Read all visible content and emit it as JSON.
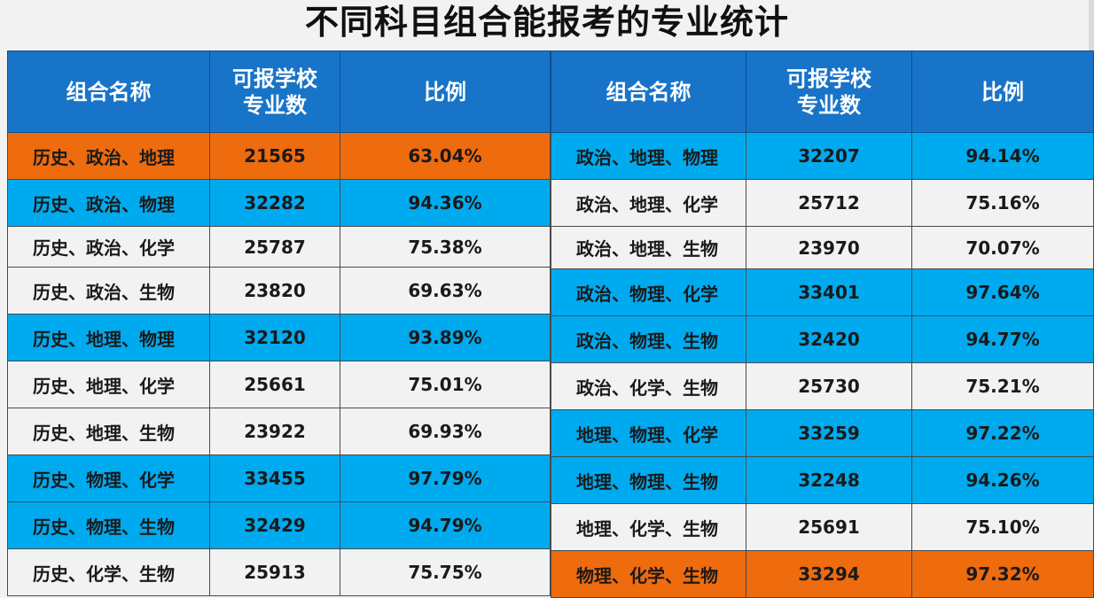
{
  "title": "不同科目组合能报考的专业统计",
  "headers": {
    "name": "组合名称",
    "count_line1": "可报学校",
    "count_line2": "专业数",
    "ratio": "比例"
  },
  "colors": {
    "header": "#1874c8",
    "blue_row": "#00aaee",
    "white_row": "#f2f2f2",
    "orange_row": "#ee6b0e"
  },
  "left_rows": [
    {
      "name": "历史、政治、地理",
      "count": "21565",
      "ratio": "63.04%",
      "style": "orange"
    },
    {
      "name": "历史、政治、物理",
      "count": "32282",
      "ratio": "94.36%",
      "style": "blue"
    },
    {
      "name": "历史、政治、化学",
      "count": "25787",
      "ratio": "75.38%",
      "style": "white"
    },
    {
      "name": "历史、政治、生物",
      "count": "23820",
      "ratio": "69.63%",
      "style": "white"
    },
    {
      "name": "历史、地理、物理",
      "count": "32120",
      "ratio": "93.89%",
      "style": "blue"
    },
    {
      "name": "历史、地理、化学",
      "count": "25661",
      "ratio": "75.01%",
      "style": "white"
    },
    {
      "name": "历史、地理、生物",
      "count": "23922",
      "ratio": "69.93%",
      "style": "white"
    },
    {
      "name": "历史、物理、化学",
      "count": "33455",
      "ratio": "97.79%",
      "style": "blue"
    },
    {
      "name": "历史、物理、生物",
      "count": "32429",
      "ratio": "94.79%",
      "style": "blue"
    },
    {
      "name": "历史、化学、生物",
      "count": "25913",
      "ratio": "75.75%",
      "style": "white"
    }
  ],
  "right_rows": [
    {
      "name": "政治、地理、物理",
      "count": "32207",
      "ratio": "94.14%",
      "style": "blue"
    },
    {
      "name": "政治、地理、化学",
      "count": "25712",
      "ratio": "75.16%",
      "style": "white"
    },
    {
      "name": "政治、地理、生物",
      "count": "23970",
      "ratio": "70.07%",
      "style": "white"
    },
    {
      "name": "政治、物理、化学",
      "count": "33401",
      "ratio": "97.64%",
      "style": "blue"
    },
    {
      "name": "政治、物理、生物",
      "count": "32420",
      "ratio": "94.77%",
      "style": "blue"
    },
    {
      "name": "政治、化学、生物",
      "count": "25730",
      "ratio": "75.21%",
      "style": "white"
    },
    {
      "name": "地理、物理、化学",
      "count": "33259",
      "ratio": "97.22%",
      "style": "blue"
    },
    {
      "name": "地理、物理、生物",
      "count": "32248",
      "ratio": "94.26%",
      "style": "blue"
    },
    {
      "name": "地理、化学、生物",
      "count": "25691",
      "ratio": "75.10%",
      "style": "white"
    },
    {
      "name": "物理、化学、生物",
      "count": "33294",
      "ratio": "97.32%",
      "style": "orange"
    }
  ]
}
